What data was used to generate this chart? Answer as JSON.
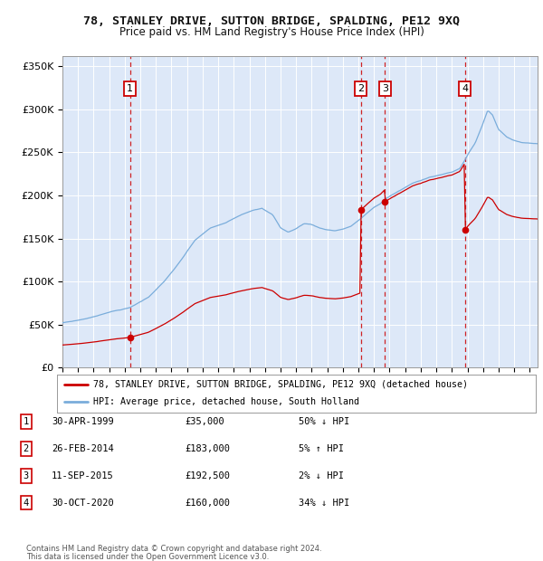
{
  "title": "78, STANLEY DRIVE, SUTTON BRIDGE, SPALDING, PE12 9XQ",
  "subtitle": "Price paid vs. HM Land Registry's House Price Index (HPI)",
  "legend_line1": "78, STANLEY DRIVE, SUTTON BRIDGE, SPALDING, PE12 9XQ (detached house)",
  "legend_line2": "HPI: Average price, detached house, South Holland",
  "footer1": "Contains HM Land Registry data © Crown copyright and database right 2024.",
  "footer2": "This data is licensed under the Open Government Licence v3.0.",
  "hpi_color": "#7aaddb",
  "price_color": "#cc0000",
  "background_color": "#dde8f8",
  "sale_points": [
    {
      "num": 1,
      "date_dec": 1999.33,
      "price": 35000,
      "label": "30-APR-1999",
      "amount": "£35,000",
      "pct": "50% ↓ HPI"
    },
    {
      "num": 2,
      "date_dec": 2014.15,
      "price": 183000,
      "label": "26-FEB-2014",
      "amount": "£183,000",
      "pct": "5% ↑ HPI"
    },
    {
      "num": 3,
      "date_dec": 2015.7,
      "price": 192500,
      "label": "11-SEP-2015",
      "amount": "£192,500",
      "pct": "2% ↓ HPI"
    },
    {
      "num": 4,
      "date_dec": 2020.83,
      "price": 160000,
      "label": "30-OCT-2020",
      "amount": "£160,000",
      "pct": "34% ↓ HPI"
    }
  ],
  "xlim": [
    1995.0,
    2025.5
  ],
  "ylim": [
    0,
    362000
  ],
  "yticks": [
    0,
    50000,
    100000,
    150000,
    200000,
    250000,
    300000,
    350000
  ],
  "ytick_labels": [
    "£0",
    "£50K",
    "£100K",
    "£150K",
    "£200K",
    "£250K",
    "£300K",
    "£350K"
  ],
  "hpi_anchors": [
    [
      1995.0,
      52000
    ],
    [
      1996.0,
      55000
    ],
    [
      1997.0,
      59000
    ],
    [
      1998.0,
      65000
    ],
    [
      1999.33,
      70000
    ],
    [
      2000.5,
      82000
    ],
    [
      2001.5,
      100000
    ],
    [
      2002.5,
      122000
    ],
    [
      2003.5,
      148000
    ],
    [
      2004.5,
      162000
    ],
    [
      2005.5,
      168000
    ],
    [
      2006.5,
      178000
    ],
    [
      2007.3,
      184000
    ],
    [
      2007.8,
      186000
    ],
    [
      2008.5,
      178000
    ],
    [
      2009.0,
      163000
    ],
    [
      2009.5,
      158000
    ],
    [
      2010.0,
      162000
    ],
    [
      2010.5,
      168000
    ],
    [
      2011.0,
      167000
    ],
    [
      2011.5,
      163000
    ],
    [
      2012.0,
      161000
    ],
    [
      2012.5,
      160000
    ],
    [
      2013.0,
      162000
    ],
    [
      2013.5,
      165000
    ],
    [
      2014.15,
      174000
    ],
    [
      2014.8,
      184000
    ],
    [
      2015.0,
      187000
    ],
    [
      2015.4,
      191000
    ],
    [
      2015.7,
      196500
    ],
    [
      2016.0,
      200000
    ],
    [
      2016.5,
      205000
    ],
    [
      2017.0,
      210000
    ],
    [
      2017.5,
      215000
    ],
    [
      2018.0,
      218000
    ],
    [
      2018.5,
      222000
    ],
    [
      2019.0,
      224000
    ],
    [
      2019.5,
      226000
    ],
    [
      2020.0,
      228000
    ],
    [
      2020.5,
      232000
    ],
    [
      2020.83,
      242000
    ],
    [
      2021.0,
      248000
    ],
    [
      2021.5,
      262000
    ],
    [
      2022.0,
      285000
    ],
    [
      2022.3,
      300000
    ],
    [
      2022.6,
      295000
    ],
    [
      2023.0,
      278000
    ],
    [
      2023.5,
      270000
    ],
    [
      2024.0,
      265000
    ],
    [
      2024.5,
      263000
    ],
    [
      2025.3,
      262000
    ]
  ]
}
